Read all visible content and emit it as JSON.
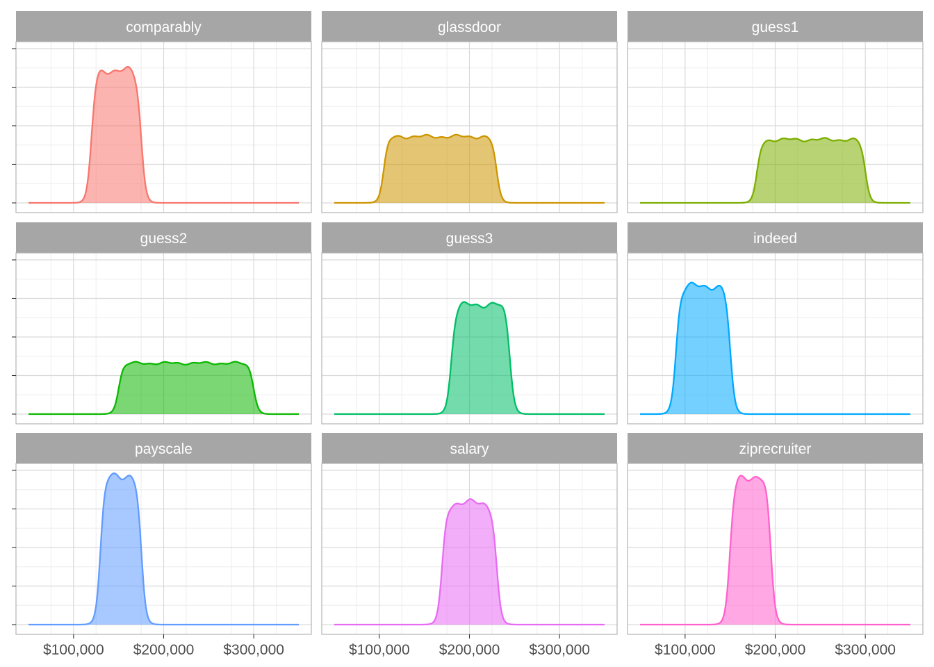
{
  "chart_data": {
    "type": "area",
    "layout": "facet-grid",
    "grid": true,
    "legend": "none",
    "shared_x_axis": true,
    "shared_y_axis": true,
    "y_tick_labels": "none",
    "xlim": [
      50000,
      350000
    ],
    "x_ticks": [
      100000,
      200000,
      300000
    ],
    "x_tick_labels": [
      "$100,000",
      "$200,000",
      "$300,000"
    ],
    "xlabel": "",
    "ylabel": "",
    "title": "",
    "panels": [
      {
        "name": "comparably",
        "color": "#F8766D",
        "lo": 120000,
        "hi": 175000,
        "level": 0.86
      },
      {
        "name": "glassdoor",
        "color": "#CD9600",
        "lo": 105000,
        "hi": 230000,
        "level": 0.43
      },
      {
        "name": "guess1",
        "color": "#7CAE00",
        "lo": 180000,
        "hi": 300000,
        "level": 0.41
      },
      {
        "name": "guess2",
        "color": "#0CB702",
        "lo": 150000,
        "hi": 300000,
        "level": 0.33
      },
      {
        "name": "guess3",
        "color": "#00BE67",
        "lo": 180000,
        "hi": 245000,
        "level": 0.71
      },
      {
        "name": "indeed",
        "color": "#00A9FF",
        "lo": 90000,
        "hi": 150000,
        "level": 0.83
      },
      {
        "name": "payscale",
        "color": "#619CFF",
        "lo": 130000,
        "hi": 175000,
        "level": 0.97
      },
      {
        "name": "salary",
        "color": "#E76BF3",
        "lo": 170000,
        "hi": 230000,
        "level": 0.79
      },
      {
        "name": "ziprecruiter",
        "color": "#FF61CC",
        "lo": 150000,
        "hi": 195000,
        "level": 0.96
      }
    ]
  },
  "style": {
    "panel_border": "#b3b3b3",
    "grid_major": "#d9d9d9",
    "grid_minor": "#ededed",
    "strip_fill": "#a6a6a6",
    "strip_text": "#ffffff",
    "tick_color": "#333333",
    "tick_label_color": "#4d4d4d"
  }
}
